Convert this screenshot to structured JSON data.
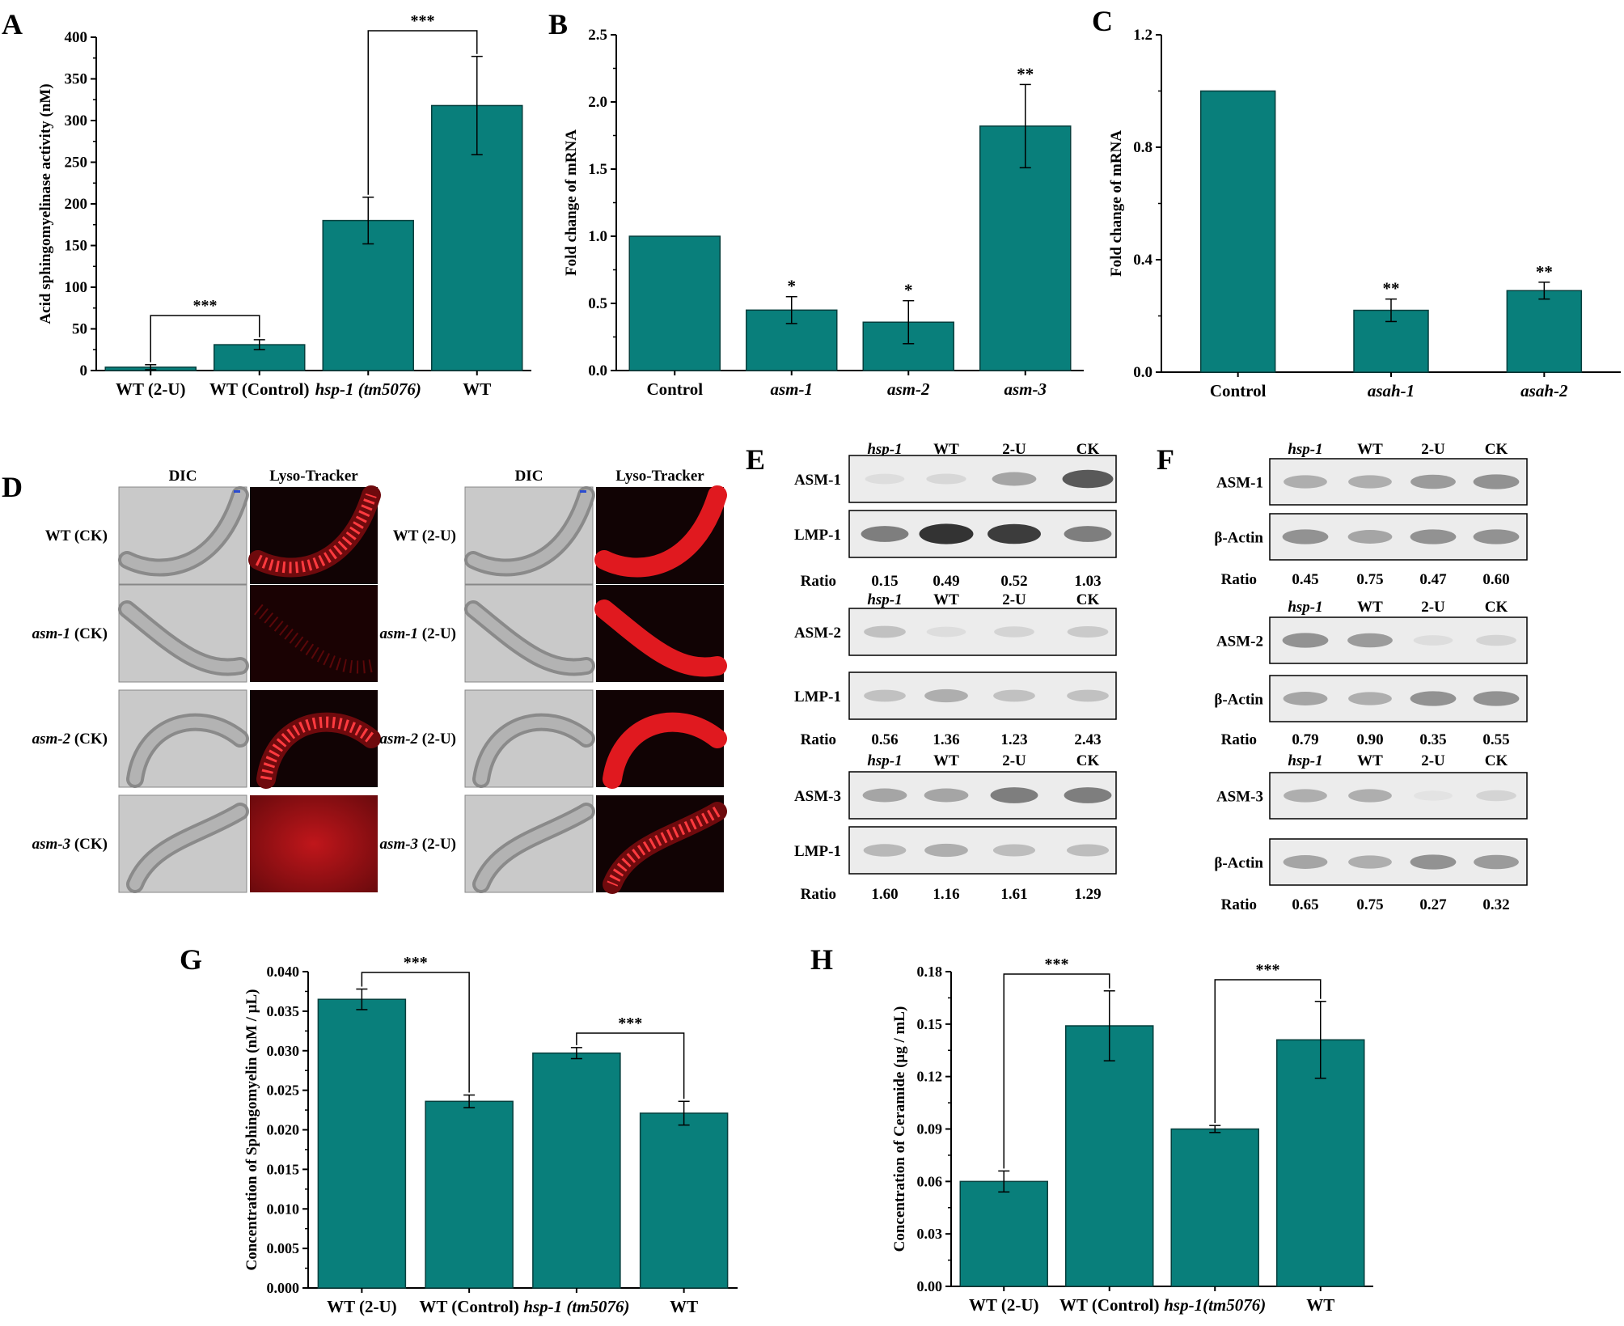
{
  "colors": {
    "bar": "#097f7b",
    "bar_edge": "#063f3d",
    "axis": "#000000",
    "micro_dark": "#110304",
    "micro_red": "#e0191f",
    "blot_bg": "#ececec"
  },
  "panels": {
    "A": {
      "label": "A",
      "sig": [
        {
          "text": "***"
        },
        {
          "text": "***"
        }
      ]
    },
    "B": {
      "label": "B",
      "stars": [
        "",
        "*",
        "*",
        "**"
      ]
    },
    "C": {
      "label": "C",
      "stars": [
        "",
        "**",
        "**"
      ]
    },
    "D": {
      "label": "D",
      "left": {
        "col_headers": [
          "DIC",
          "Lyso-Tracker"
        ],
        "rows": [
          {
            "gene": "WT",
            "cond": "(CK)",
            "italic": false,
            "fluor": "puncta"
          },
          {
            "gene": "asm-1",
            "cond": "(CK)",
            "italic": true,
            "fluor": "dim"
          },
          {
            "gene": "asm-2",
            "cond": "(CK)",
            "italic": true,
            "fluor": "puncta"
          },
          {
            "gene": "asm-3",
            "cond": "(CK)",
            "italic": true,
            "fluor": "haze"
          }
        ]
      },
      "right": {
        "col_headers": [
          "DIC",
          "Lyso-Tracker"
        ],
        "rows": [
          {
            "gene": "WT",
            "cond": "(2-U)",
            "italic": false,
            "fluor": "bright"
          },
          {
            "gene": "asm-1",
            "cond": "(2-U)",
            "italic": true,
            "fluor": "bright"
          },
          {
            "gene": "asm-2",
            "cond": "(2-U)",
            "italic": true,
            "fluor": "bright"
          },
          {
            "gene": "asm-3",
            "cond": "(2-U)",
            "italic": true,
            "fluor": "puncta"
          }
        ]
      }
    },
    "E": {
      "label": "E",
      "lanes": [
        "hsp-1",
        "WT",
        "2-U",
        "CK"
      ],
      "groups": [
        {
          "protein": "ASM-1",
          "control": "LMP-1",
          "ratio_label": "Ratio",
          "ratios": [
            "0.15",
            "0.49",
            "0.52",
            "1.03"
          ]
        },
        {
          "protein": "ASM-2",
          "control": "LMP-1",
          "ratio_label": "Ratio",
          "ratios": [
            "0.56",
            "1.36",
            "1.23",
            "2.43"
          ]
        },
        {
          "protein": "ASM-3",
          "control": "LMP-1",
          "ratio_label": "Ratio",
          "ratios": [
            "1.60",
            "1.16",
            "1.61",
            "1.29"
          ]
        }
      ]
    },
    "F": {
      "label": "F",
      "lanes": [
        "hsp-1",
        "WT",
        "2-U",
        "CK"
      ],
      "groups": [
        {
          "protein": "ASM-1",
          "control": "β-Actin",
          "ratio_label": "Ratio",
          "ratios": [
            "0.45",
            "0.75",
            "0.47",
            "0.60"
          ]
        },
        {
          "protein": "ASM-2",
          "control": "β-Actin",
          "ratio_label": "Ratio",
          "ratios": [
            "0.79",
            "0.90",
            "0.35",
            "0.55"
          ]
        },
        {
          "protein": "ASM-3",
          "control": "β-Actin",
          "ratio_label": "Ratio",
          "ratios": [
            "0.65",
            "0.75",
            "0.27",
            "0.32"
          ]
        }
      ]
    },
    "G": {
      "label": "G",
      "sig": [
        {
          "text": "***"
        },
        {
          "text": "***"
        }
      ]
    },
    "H": {
      "label": "H",
      "sig": [
        {
          "text": "***"
        },
        {
          "text": "***"
        }
      ]
    }
  },
  "chart_data": [
    {
      "id": "A",
      "type": "bar",
      "ylabel": "Acid sphingomyelinase activity (nM)",
      "categories": [
        "WT (2-U)",
        "WT (Control)",
        "hsp-1 (tm5076)",
        "WT"
      ],
      "italic": [
        false,
        false,
        true,
        false
      ],
      "values": [
        4,
        31,
        180,
        318
      ],
      "errors": [
        3,
        6,
        28,
        59
      ],
      "ylim": [
        0,
        400
      ],
      "yticks": [
        "0",
        "50",
        "100",
        "150",
        "200",
        "250",
        "300",
        "350",
        "400"
      ]
    },
    {
      "id": "B",
      "type": "bar",
      "ylabel": "Fold change of mRNA",
      "categories": [
        "Control",
        "asm-1",
        "asm-2",
        "asm-3"
      ],
      "italic": [
        false,
        true,
        true,
        true
      ],
      "values": [
        1.0,
        0.45,
        0.36,
        1.82
      ],
      "errors": [
        0,
        0.1,
        0.16,
        0.31
      ],
      "ylim": [
        0,
        2.5
      ],
      "yticks": [
        "0.0",
        "0.5",
        "1.0",
        "1.5",
        "2.0",
        "2.5"
      ]
    },
    {
      "id": "C",
      "type": "bar",
      "ylabel": "Fold change of mRNA",
      "categories": [
        "Control",
        "asah-1",
        "asah-2"
      ],
      "italic": [
        false,
        true,
        true
      ],
      "values": [
        1.0,
        0.22,
        0.29
      ],
      "errors": [
        0,
        0.04,
        0.03
      ],
      "ylim": [
        0,
        1.2
      ],
      "yticks": [
        "0.0",
        "0.4",
        "0.8",
        "1.2"
      ]
    },
    {
      "id": "G",
      "type": "bar",
      "ylabel": "Concentration of Sphingomyelin (nM / μL)",
      "categories": [
        "WT (2-U)",
        "WT (Control)",
        "hsp-1 (tm5076)",
        "WT"
      ],
      "italic": [
        false,
        false,
        true,
        false
      ],
      "values": [
        0.0365,
        0.0236,
        0.0297,
        0.0221
      ],
      "errors": [
        0.0013,
        0.0008,
        0.0007,
        0.0015
      ],
      "ylim": [
        0,
        0.04
      ],
      "yticks": [
        "0.000",
        "0.005",
        "0.010",
        "0.015",
        "0.020",
        "0.025",
        "0.030",
        "0.035",
        "0.040"
      ]
    },
    {
      "id": "H",
      "type": "bar",
      "ylabel": "Concentration of Ceramide (μg / mL)",
      "categories": [
        "WT (2-U)",
        "WT (Control)",
        "hsp-1(tm5076)",
        "WT"
      ],
      "italic": [
        false,
        false,
        true,
        false
      ],
      "values": [
        0.06,
        0.149,
        0.09,
        0.141
      ],
      "errors": [
        0.006,
        0.02,
        0.002,
        0.022
      ],
      "ylim": [
        0,
        0.18
      ],
      "yticks": [
        "0.00",
        "0.03",
        "0.06",
        "0.09",
        "0.12",
        "0.15",
        "0.18"
      ]
    }
  ]
}
